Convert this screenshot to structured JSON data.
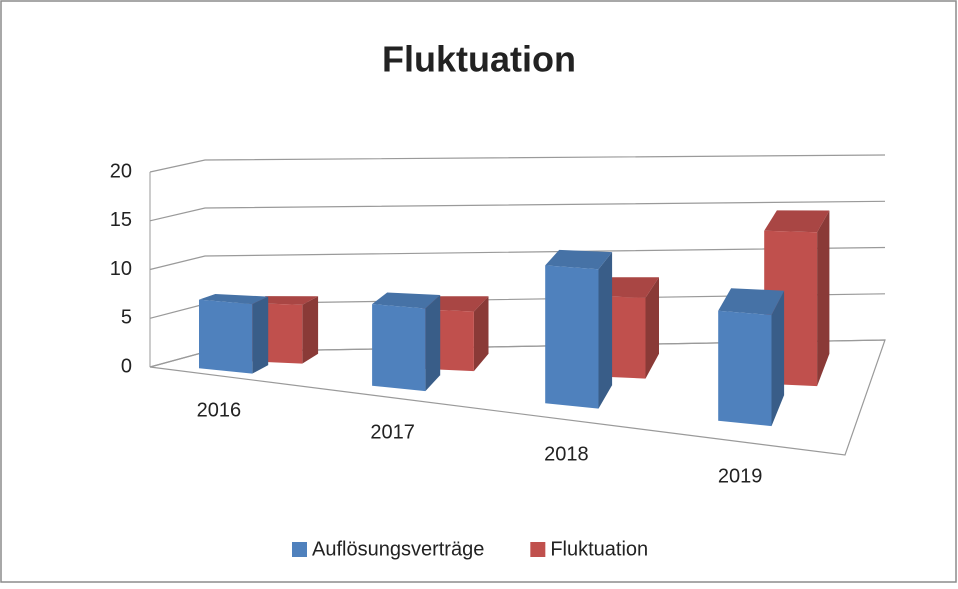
{
  "chart_data": {
    "type": "bar3d",
    "title": "Fluktuation",
    "categories": [
      "2016",
      "2017",
      "2018",
      "2019"
    ],
    "series": [
      {
        "name": "Auflösungsverträge",
        "color": "#4f81bd",
        "values": [
          7,
          8,
          13,
          10
        ]
      },
      {
        "name": "Fluktuation",
        "color": "#c0504d",
        "values": [
          6,
          6,
          8,
          15
        ]
      }
    ],
    "ylim": [
      0,
      20
    ],
    "yticks": [
      0,
      5,
      10,
      15,
      20
    ],
    "grid": true,
    "legend": "bottom"
  }
}
